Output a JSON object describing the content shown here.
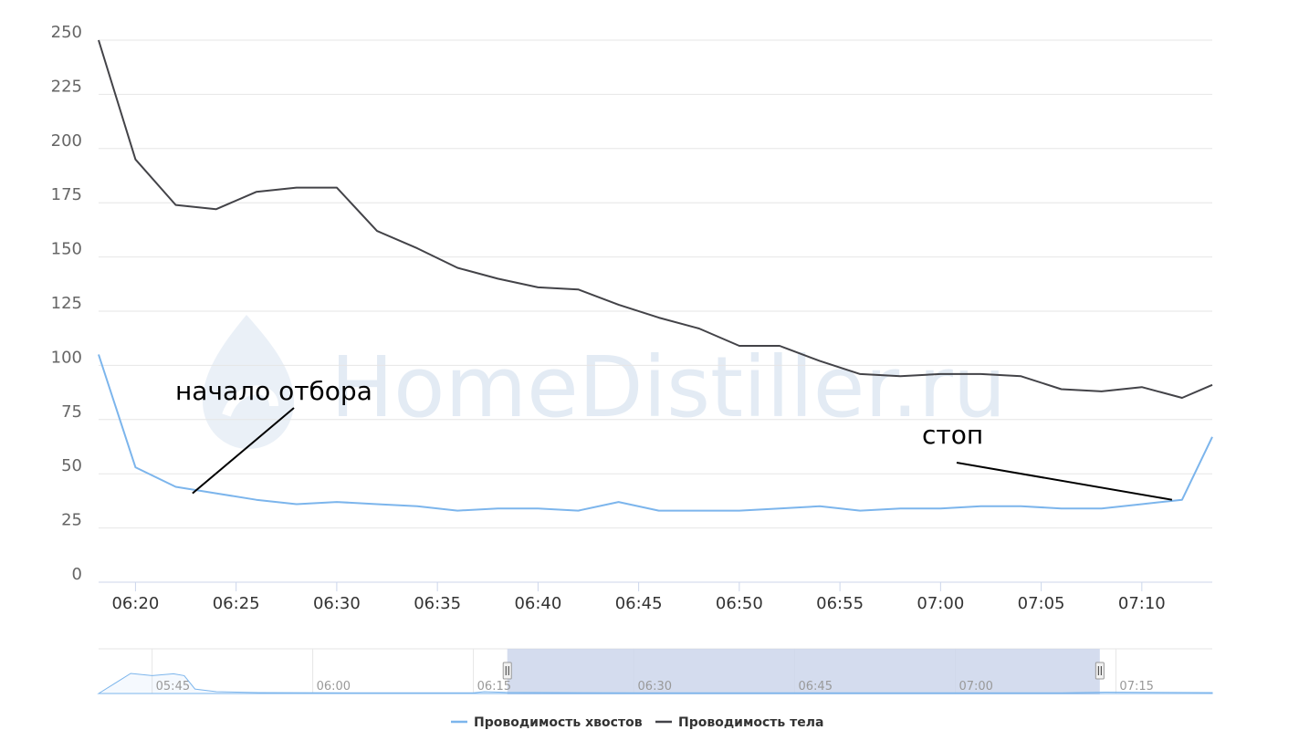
{
  "watermark": {
    "text": "HomeDistiller.ru",
    "color": "#e3ebf4"
  },
  "chart_data": {
    "type": "line",
    "title": "",
    "xlabel": "",
    "ylabel": "",
    "ylim": [
      0,
      250
    ],
    "y_ticks": [
      0,
      25,
      50,
      75,
      100,
      125,
      150,
      175,
      200,
      225,
      250
    ],
    "x_ticks": [
      "06:20",
      "06:25",
      "06:30",
      "06:35",
      "06:40",
      "06:45",
      "06:50",
      "06:55",
      "07:00",
      "07:05",
      "07:10"
    ],
    "x_range": [
      "06:18:10",
      "07:13:30"
    ],
    "grid": true,
    "legend_position": "bottom",
    "x": [
      "06:18:10",
      "06:20:00",
      "06:22:00",
      "06:24:00",
      "06:26:00",
      "06:28:00",
      "06:30:00",
      "06:32:00",
      "06:34:00",
      "06:36:00",
      "06:38:00",
      "06:40:00",
      "06:42:00",
      "06:44:00",
      "06:46:00",
      "06:48:00",
      "06:50:00",
      "06:52:00",
      "06:54:00",
      "06:56:00",
      "06:58:00",
      "07:00:00",
      "07:02:00",
      "07:04:00",
      "07:06:00",
      "07:08:00",
      "07:10:00",
      "07:12:00",
      "07:13:30"
    ],
    "series": [
      {
        "name": "Проводимость хвостов",
        "color": "#7cb5ec",
        "values": [
          105,
          53,
          44,
          41,
          38,
          36,
          37,
          36,
          35,
          33,
          34,
          34,
          33,
          37,
          33,
          33,
          33,
          34,
          35,
          33,
          34,
          34,
          35,
          35,
          34,
          34,
          36,
          38,
          67
        ]
      },
      {
        "name": "Проводимость тела",
        "color": "#434348",
        "values": [
          250,
          195,
          174,
          172,
          180,
          182,
          182,
          162,
          154,
          145,
          140,
          136,
          135,
          128,
          122,
          117,
          109,
          109,
          102,
          96,
          95,
          96,
          96,
          95,
          89,
          88,
          90,
          85,
          91
        ]
      }
    ],
    "annotations": [
      {
        "text": "начало отбора",
        "points_to": {
          "x": "06:22:50",
          "y": 41
        }
      },
      {
        "text": "стоп",
        "points_to": {
          "x": "07:11:30",
          "y": 38
        }
      }
    ],
    "navigator": {
      "x_ticks": [
        "05:45",
        "06:00",
        "06:15",
        "06:30",
        "06:45",
        "07:00",
        "07:15"
      ],
      "x_range": [
        "05:40",
        "07:24"
      ],
      "selected_range": [
        "06:18:10",
        "07:13:30"
      ],
      "fill_color": "#ccd6eb",
      "line_color": "#7cb5ec"
    }
  }
}
